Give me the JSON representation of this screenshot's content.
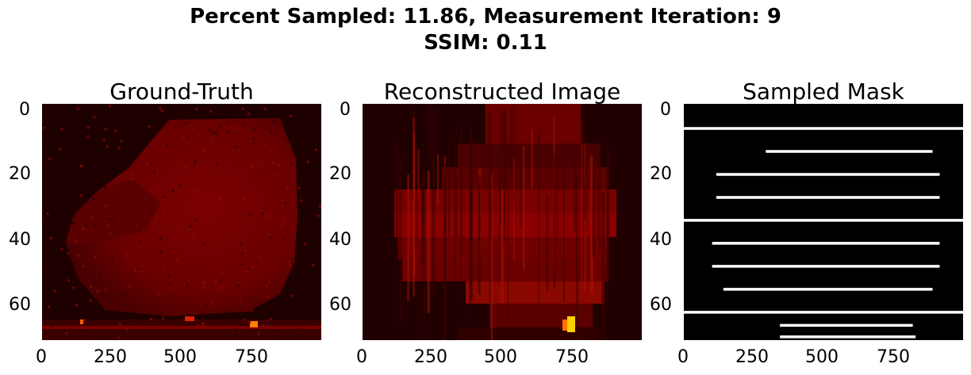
{
  "suptitle": {
    "line1": "Percent Sampled: 11.86, Measurement Iteration: 9",
    "line2": "SSIM: 0.11"
  },
  "panels": [
    {
      "title": "Ground-Truth",
      "colormap": "hot"
    },
    {
      "title": "Reconstructed Image",
      "colormap": "hot"
    },
    {
      "title": "Sampled Mask",
      "colormap": "gray"
    }
  ],
  "chart_data": {
    "type": "heatmap",
    "xlim": [
      0,
      988
    ],
    "ylim": [
      72,
      0
    ],
    "xticks": [
      "0",
      "250",
      "500",
      "750"
    ],
    "yticks": [
      "0",
      "20",
      "40",
      "60"
    ],
    "sampled_rows": [
      {
        "y": 7.5,
        "x0": 0,
        "x1": 988
      },
      {
        "y": 14.5,
        "x0": 290,
        "x1": 880
      },
      {
        "y": 21.5,
        "x0": 115,
        "x1": 905
      },
      {
        "y": 28.5,
        "x0": 115,
        "x1": 905
      },
      {
        "y": 35.5,
        "x0": 0,
        "x1": 988
      },
      {
        "y": 42.5,
        "x0": 100,
        "x1": 905
      },
      {
        "y": 49.5,
        "x0": 100,
        "x1": 905
      },
      {
        "y": 56.5,
        "x0": 140,
        "x1": 880
      },
      {
        "y": 63.5,
        "x0": 0,
        "x1": 988
      },
      {
        "y": 67.5,
        "x0": 340,
        "x1": 810
      },
      {
        "y": 71.0,
        "x0": 340,
        "x1": 820
      }
    ]
  }
}
